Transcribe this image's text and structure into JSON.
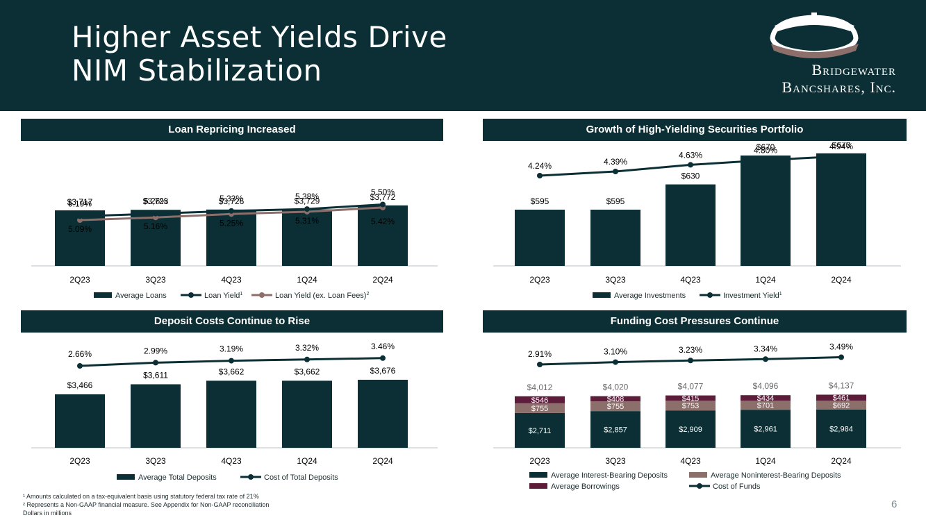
{
  "header": {
    "title_line1": "Higher Asset Yields Drive",
    "title_line2": "NIM Stabilization",
    "logo_line1": "Bridgewater",
    "logo_line2": "Bancshares, Inc."
  },
  "colors": {
    "dark_teal": "#0b2f35",
    "mauve": "#8c6e6b",
    "maroon": "#5c1c3a"
  },
  "chart_data": [
    {
      "id": "loans",
      "type": "bar",
      "title": "Loan Repricing Increased",
      "categories": [
        "2Q23",
        "3Q23",
        "4Q23",
        "1Q24",
        "2Q24"
      ],
      "series": [
        {
          "name": "Average Loans",
          "type": "bar",
          "values": [
            3717,
            3723,
            3726,
            3729,
            3772
          ],
          "labels": [
            "$3,717",
            "$3,723",
            "$3,726",
            "$3,729",
            "$3,772"
          ]
        },
        {
          "name": "Loan Yield",
          "superscript": "1",
          "type": "line",
          "values": [
            5.19,
            5.26,
            5.33,
            5.38,
            5.5
          ],
          "labels": [
            "5.19%",
            "5.26%",
            "5.33%",
            "5.38%",
            "5.50%"
          ]
        },
        {
          "name": "Loan Yield (ex. Loan Fees)",
          "superscript": "2",
          "type": "line",
          "values": [
            5.09,
            5.16,
            5.25,
            5.31,
            5.42
          ],
          "labels": [
            "5.09%",
            "5.16%",
            "5.25%",
            "5.31%",
            "5.42%"
          ]
        }
      ],
      "legend_position": "bottom"
    },
    {
      "id": "securities",
      "type": "bar",
      "title": "Growth of High-Yielding Securities Portfolio",
      "categories": [
        "2Q23",
        "3Q23",
        "4Q23",
        "1Q24",
        "2Q24"
      ],
      "series": [
        {
          "name": "Average Investments",
          "type": "bar",
          "values": [
            595,
            595,
            630,
            670,
            673
          ],
          "labels": [
            "$595",
            "$595",
            "$630",
            "$670",
            "$673"
          ]
        },
        {
          "name": "Investment Yield",
          "superscript": "1",
          "type": "line",
          "values": [
            4.24,
            4.39,
            4.63,
            4.8,
            4.94
          ],
          "labels": [
            "4.24%",
            "4.39%",
            "4.63%",
            "4.80%",
            "4.94%"
          ]
        }
      ],
      "legend_position": "bottom"
    },
    {
      "id": "deposits",
      "type": "bar",
      "title": "Deposit Costs Continue to Rise",
      "categories": [
        "2Q23",
        "3Q23",
        "4Q23",
        "1Q24",
        "2Q24"
      ],
      "series": [
        {
          "name": "Average Total Deposits",
          "type": "bar",
          "values": [
            3466,
            3611,
            3662,
            3662,
            3676
          ],
          "labels": [
            "$3,466",
            "$3,611",
            "$3,662",
            "$3,662",
            "$3,676"
          ]
        },
        {
          "name": "Cost of Total Deposits",
          "type": "line",
          "values": [
            2.66,
            2.99,
            3.19,
            3.32,
            3.46
          ],
          "labels": [
            "2.66%",
            "2.99%",
            "3.19%",
            "3.32%",
            "3.46%"
          ]
        }
      ],
      "legend_position": "bottom"
    },
    {
      "id": "funding",
      "type": "bar",
      "stacked": true,
      "title": "Funding Cost Pressures Continue",
      "categories": [
        "2Q23",
        "3Q23",
        "4Q23",
        "1Q24",
        "2Q24"
      ],
      "totals": [
        "$4,012",
        "$4,020",
        "$4,077",
        "$4,096",
        "$4,137"
      ],
      "series": [
        {
          "name": "Average Interest-Bearing Deposits",
          "type": "bar",
          "values": [
            2711,
            2857,
            2909,
            2961,
            2984
          ],
          "labels": [
            "$2,711",
            "$2,857",
            "$2,909",
            "$2,961",
            "$2,984"
          ]
        },
        {
          "name": "Average Noninterest-Bearing Deposits",
          "type": "bar",
          "values": [
            755,
            755,
            753,
            701,
            692
          ],
          "labels": [
            "$755",
            "$755",
            "$753",
            "$701",
            "$692"
          ]
        },
        {
          "name": "Average Borrowings",
          "type": "bar",
          "values": [
            546,
            408,
            415,
            434,
            461
          ],
          "labels": [
            "$546",
            "$408",
            "$415",
            "$434",
            "$461"
          ]
        },
        {
          "name": "Cost of Funds",
          "type": "line",
          "values": [
            2.91,
            3.1,
            3.23,
            3.34,
            3.49
          ],
          "labels": [
            "2.91%",
            "3.10%",
            "3.23%",
            "3.34%",
            "3.49%"
          ]
        }
      ],
      "legend_position": "bottom"
    }
  ],
  "footnotes": {
    "note1": "¹ Amounts calculated on a tax-equivalent basis using statutory federal tax rate of 21%",
    "note2": "² Represents a Non-GAAP financial measure. See Appendix for Non-GAAP reconciliation",
    "note3": "Dollars in millions"
  },
  "page_number": "6"
}
